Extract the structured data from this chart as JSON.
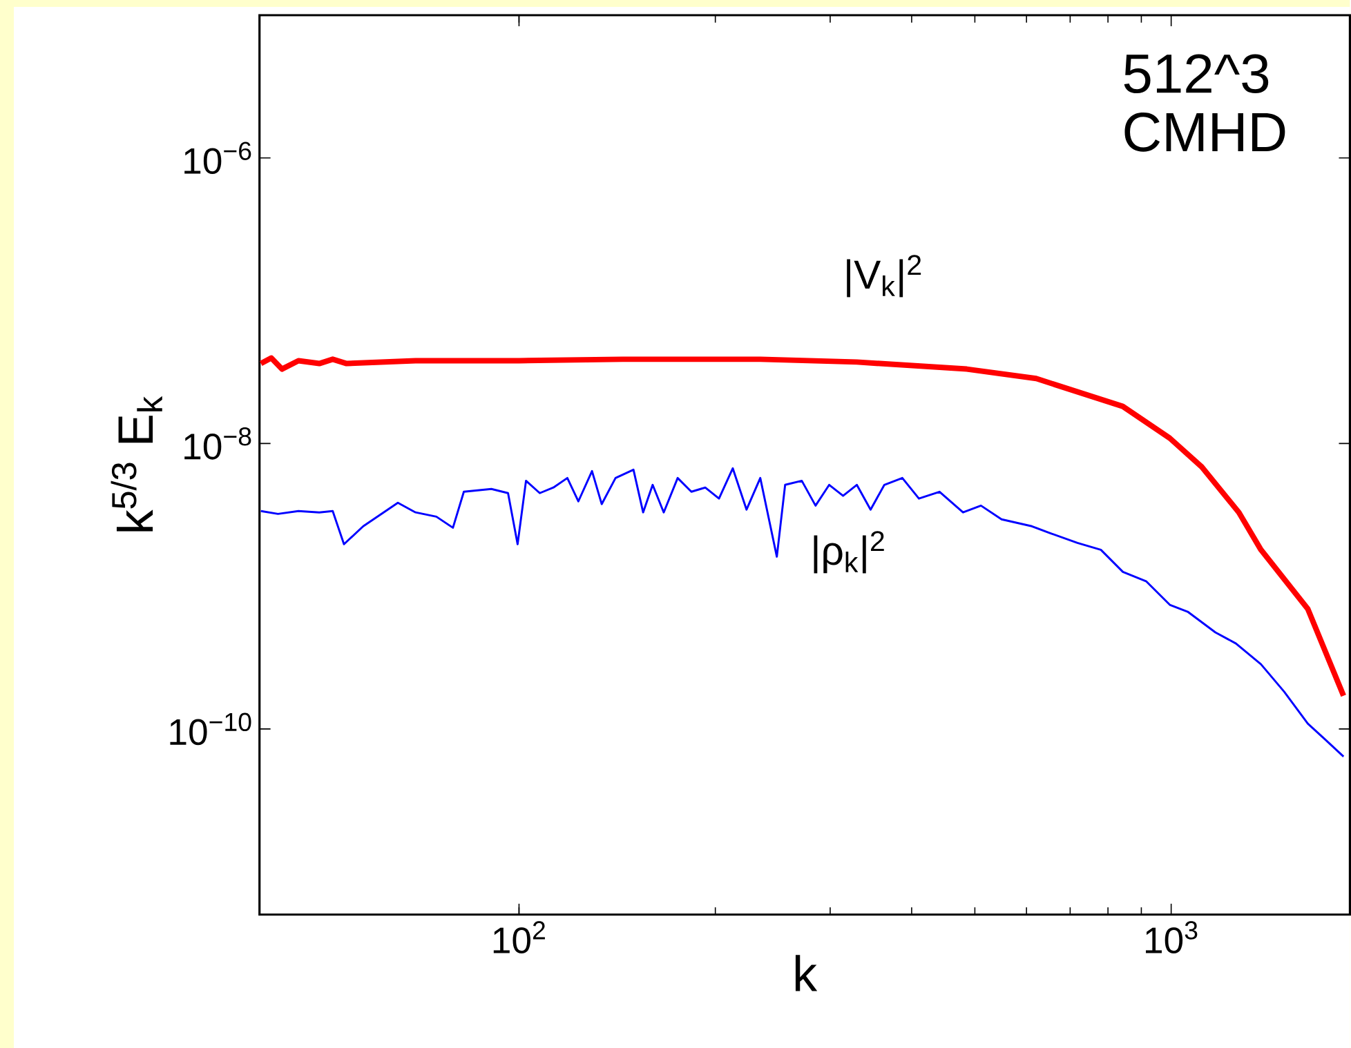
{
  "chart_data": {
    "type": "line",
    "xlabel": "k",
    "ylabel": "k$^{5/3}$ E$_{k}$",
    "log": "xy",
    "annotations": [
      "512^3",
      "CMHD"
    ],
    "xlim": [
      40,
      1880
    ],
    "ylim": [
      5e-12,
      1e-05
    ],
    "xticks": [
      {
        "value": 100,
        "label": "10$^{2}$"
      },
      {
        "value": 1000,
        "label": "10$^{3}$"
      }
    ],
    "yticks": [
      {
        "value": 1e-10,
        "label": "10$^{−10}$"
      },
      {
        "value": 1e-08,
        "label": "10$^{−8}$"
      },
      {
        "value": 1e-06,
        "label": "10$^{−6}$"
      }
    ],
    "series": [
      {
        "name": "|V$_{k}$|$^{2}$",
        "color": "#ff0000",
        "x": [
          40.2,
          41.7,
          43.3,
          45.9,
          49.4,
          51.8,
          54.4,
          69.4,
          100,
          144.1,
          234.4,
          329.6,
          486,
          621,
          843,
          995,
          1114,
          1270,
          1373,
          1620,
          1838
        ],
        "values": [
          3.63e-08,
          3.97e-08,
          3.32e-08,
          3.8e-08,
          3.63e-08,
          3.89e-08,
          3.63e-08,
          3.8e-08,
          3.8e-08,
          3.89e-08,
          3.89e-08,
          3.72e-08,
          3.32e-08,
          2.85e-08,
          1.82e-08,
          1.09e-08,
          6.85e-09,
          3.29e-09,
          1.8e-09,
          6.93e-10,
          1.71e-10
        ]
      },
      {
        "name": "|ρ$_{k}$|$^{2}$",
        "color": "#0000ff",
        "x": [
          40.2,
          42.7,
          45.9,
          49.4,
          51.8,
          53.9,
          57.7,
          65.2,
          69.4,
          74.7,
          79.2,
          82.3,
          90.7,
          96.2,
          99.5,
          102.5,
          107.6,
          112.9,
          118.6,
          123.3,
          129.4,
          133.9,
          140.6,
          149.8,
          155.0,
          160.3,
          166.7,
          175.1,
          183.8,
          193.0,
          202.6,
          212.7,
          223.3,
          234.4,
          248.5,
          255.9,
          271.4,
          284.9,
          299.0,
          314.0,
          329.6,
          346.0,
          363.3,
          387.1,
          410.4,
          441.4,
          479.6,
          510.9,
          549.5,
          611.6,
          651.6,
          718.3,
          780.3,
          843.3,
          916.2,
          995.2,
          1060,
          1169,
          1257,
          1373,
          1491,
          1620,
          1726,
          1838
        ],
        "values": [
          3.36e-09,
          3.21e-09,
          3.36e-09,
          3.29e-09,
          3.36e-09,
          1.97e-09,
          2.63e-09,
          3.84e-09,
          3.29e-09,
          3.07e-09,
          2.57e-09,
          4.59e-09,
          4.8e-09,
          4.49e-09,
          1.97e-09,
          5.48e-09,
          4.49e-09,
          4.91e-09,
          5.73e-09,
          3.93e-09,
          6.41e-09,
          3.76e-09,
          5.73e-09,
          6.55e-09,
          3.29e-09,
          5.13e-09,
          3.29e-09,
          5.73e-09,
          4.59e-09,
          4.91e-09,
          4.11e-09,
          6.7e-09,
          3.44e-09,
          5.73e-09,
          1.61e-09,
          5.13e-09,
          5.48e-09,
          3.67e-09,
          5.13e-09,
          4.3e-09,
          5.13e-09,
          3.44e-09,
          5.13e-09,
          5.73e-09,
          4.11e-09,
          4.59e-09,
          3.29e-09,
          3.67e-09,
          2.94e-09,
          2.63e-09,
          2.36e-09,
          2.01e-09,
          1.8e-09,
          1.26e-09,
          1.08e-09,
          7.41e-10,
          6.63e-10,
          4.75e-10,
          3.97e-10,
          2.84e-10,
          1.82e-10,
          1.09e-10,
          8.37e-11,
          6.41e-11
        ]
      }
    ]
  }
}
